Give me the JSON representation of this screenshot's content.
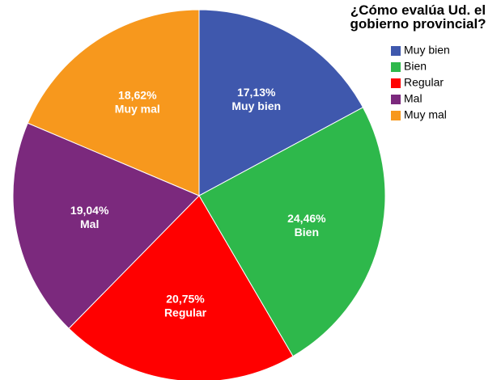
{
  "chart_data": {
    "type": "pie",
    "title": "¿Cómo evalúa Ud. el gobierno provincial?",
    "categories": [
      "Muy bien",
      "Bien",
      "Regular",
      "Mal",
      "Muy mal"
    ],
    "values": [
      17.13,
      24.46,
      20.75,
      19.04,
      18.62
    ],
    "value_labels": [
      "17,13%",
      "24,46%",
      "20,75%",
      "19,04%",
      "18,62%"
    ],
    "colors": [
      "#3f58ad",
      "#2eb84b",
      "#ff0000",
      "#7b297d",
      "#f7981d"
    ],
    "legend": "top-right"
  }
}
